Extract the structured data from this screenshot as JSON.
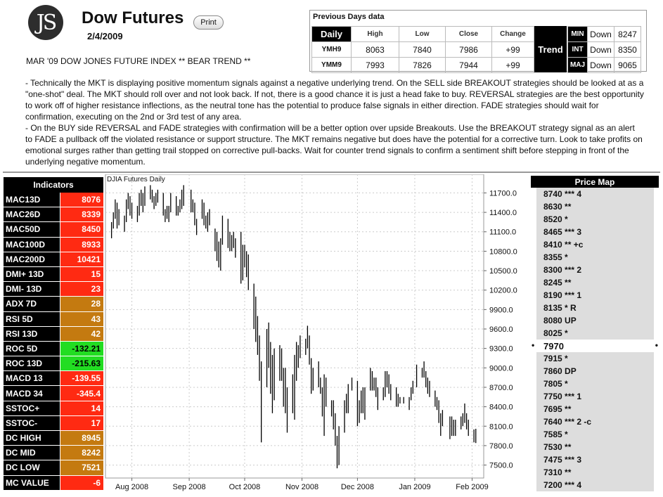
{
  "header": {
    "logo_text": "JS",
    "title": "Dow Futures",
    "print_label": "Print",
    "date": "2/4/2009",
    "subtitle": "MAR '09 DOW JONES FUTURE INDEX ** BEAR TREND **"
  },
  "previous_days": {
    "heading": "Previous Days data",
    "daily_label": "Daily",
    "columns": [
      "High",
      "Low",
      "Close",
      "Change"
    ],
    "rows": [
      {
        "symbol": "YMH9",
        "high": "8063",
        "low": "7840",
        "close": "7986",
        "change": "+99"
      },
      {
        "symbol": "YMM9",
        "high": "7993",
        "low": "7826",
        "close": "7944",
        "change": "+99"
      }
    ],
    "trend_label": "Trend",
    "trend": [
      {
        "key": "MIN",
        "dir": "Down",
        "value": "8247"
      },
      {
        "key": "INT",
        "dir": "Down",
        "value": "8350"
      },
      {
        "key": "MAJ",
        "dir": "Down",
        "value": "9065"
      }
    ]
  },
  "commentary": [
    "- Technically the MKT is displaying positive momentum signals against a negative underlying trend. On the SELL side BREAKOUT strategies should be looked at as a \"one-shot\" deal. The MKT should roll over and not look back. If not, there is a good chance it is just a head fake to buy. REVERSAL strategies are the best opportunity to work off of higher resistance inflections, as the neutral tone has the potential to produce false signals in either direction. FADE strategies should wait for confirmation, executing on the 2nd or 3rd test of any area.",
    "- On the BUY side REVERSAL and FADE strategies with confirmation will be a better option over upside Breakouts. Use the BREAKOUT strategy signal as an alert to FADE a pullback off the violated resistance or support structure. The MKT remains negative but does have the potential for a corrective turn. Look to take profits on emotional surges rather than getting trail stopped on corrective pull-backs. Wait for counter trend signals to confirm a sentiment shift before stepping in front of the underlying negative momentum."
  ],
  "indicators": {
    "heading": "Indicators",
    "colors": {
      "red": "#ff2a12",
      "orange": "#c47a10",
      "green": "#22dd22"
    },
    "items": [
      {
        "name": "MAC13D",
        "value": "8076",
        "color": "red"
      },
      {
        "name": "MAC26D",
        "value": "8339",
        "color": "red"
      },
      {
        "name": "MAC50D",
        "value": "8450",
        "color": "red"
      },
      {
        "name": "MAC100D",
        "value": "8933",
        "color": "red"
      },
      {
        "name": "MAC200D",
        "value": "10421",
        "color": "red"
      },
      {
        "name": "DMI+ 13D",
        "value": "15",
        "color": "red"
      },
      {
        "name": "DMI- 13D",
        "value": "23",
        "color": "red"
      },
      {
        "name": "ADX 7D",
        "value": "28",
        "color": "orange"
      },
      {
        "name": "RSI 5D",
        "value": "43",
        "color": "orange"
      },
      {
        "name": "RSI 13D",
        "value": "42",
        "color": "orange"
      },
      {
        "name": "ROC 5D",
        "value": "-132.21",
        "color": "green"
      },
      {
        "name": "ROC 13D",
        "value": "-215.63",
        "color": "green"
      },
      {
        "name": "MACD 13",
        "value": "-139.55",
        "color": "red"
      },
      {
        "name": "MACD 34",
        "value": "-345.4",
        "color": "red"
      },
      {
        "name": "SSTOC+",
        "value": "14",
        "color": "red"
      },
      {
        "name": "SSTOC-",
        "value": "17",
        "color": "red"
      },
      {
        "name": "DC HIGH",
        "value": "8945",
        "color": "orange"
      },
      {
        "name": "DC MID",
        "value": "8242",
        "color": "orange"
      },
      {
        "name": "DC LOW",
        "value": "7521",
        "color": "orange"
      },
      {
        "name": "MC VALUE",
        "value": "-6",
        "color": "red"
      }
    ]
  },
  "chart_data": {
    "type": "ohlc",
    "title": "DJIA Futures Daily",
    "ylim": [
      7300,
      11900
    ],
    "y_ticks": [
      "11700.0",
      "11400.0",
      "11100.0",
      "10800.0",
      "10500.0",
      "10200.0",
      "9900.0",
      "9600.0",
      "9300.0",
      "9000.0",
      "8700.0",
      "8400.0",
      "8100.0",
      "7800.0",
      "7500.0"
    ],
    "x_labels": [
      "Aug 2008",
      "Sep 2008",
      "Oct 2008",
      "Nov 2008",
      "Dec 2008",
      "Jan 2009",
      "Feb 2009"
    ],
    "grid": true,
    "bars": [
      {
        "date": "2008-07-21",
        "high": 11250,
        "low": 11000
      },
      {
        "date": "2008-07-22",
        "high": 11400,
        "low": 11150
      },
      {
        "date": "2008-07-23",
        "high": 11600,
        "low": 11300
      },
      {
        "date": "2008-07-24",
        "high": 11550,
        "low": 11150
      },
      {
        "date": "2008-07-25",
        "high": 11450,
        "low": 11200
      },
      {
        "date": "2008-07-28",
        "high": 11350,
        "low": 11100
      },
      {
        "date": "2008-07-29",
        "high": 11600,
        "low": 11250
      },
      {
        "date": "2008-07-30",
        "high": 11700,
        "low": 11450
      },
      {
        "date": "2008-07-31",
        "high": 11650,
        "low": 11350
      },
      {
        "date": "2008-08-01",
        "high": 11550,
        "low": 11300
      },
      {
        "date": "2008-08-04",
        "high": 11500,
        "low": 11250
      },
      {
        "date": "2008-08-05",
        "high": 11700,
        "low": 11350
      },
      {
        "date": "2008-08-06",
        "high": 11750,
        "low": 11500
      },
      {
        "date": "2008-08-07",
        "high": 11700,
        "low": 11400
      },
      {
        "date": "2008-08-08",
        "high": 11800,
        "low": 11500
      },
      {
        "date": "2008-08-11",
        "high": 11820,
        "low": 11600
      },
      {
        "date": "2008-08-12",
        "high": 11750,
        "low": 11550
      },
      {
        "date": "2008-08-13",
        "high": 11650,
        "low": 11450
      },
      {
        "date": "2008-08-14",
        "high": 11700,
        "low": 11500
      },
      {
        "date": "2008-08-15",
        "high": 11750,
        "low": 11550
      },
      {
        "date": "2008-08-18",
        "high": 11700,
        "low": 11350
      },
      {
        "date": "2008-08-19",
        "high": 11450,
        "low": 11250
      },
      {
        "date": "2008-08-20",
        "high": 11500,
        "low": 11300
      },
      {
        "date": "2008-08-21",
        "high": 11500,
        "low": 11250
      },
      {
        "date": "2008-08-22",
        "high": 11700,
        "low": 11400
      },
      {
        "date": "2008-08-25",
        "high": 11650,
        "low": 11350
      },
      {
        "date": "2008-08-26",
        "high": 11500,
        "low": 11350
      },
      {
        "date": "2008-08-27",
        "high": 11600,
        "low": 11400
      },
      {
        "date": "2008-08-28",
        "high": 11750,
        "low": 11450
      },
      {
        "date": "2008-08-29",
        "high": 11820,
        "low": 11500
      },
      {
        "date": "2008-09-02",
        "high": 11750,
        "low": 11400
      },
      {
        "date": "2008-09-03",
        "high": 11600,
        "low": 11400
      },
      {
        "date": "2008-09-04",
        "high": 11550,
        "low": 11200
      },
      {
        "date": "2008-09-05",
        "high": 11300,
        "low": 11050
      },
      {
        "date": "2008-09-08",
        "high": 11600,
        "low": 11300
      },
      {
        "date": "2008-09-09",
        "high": 11550,
        "low": 11200
      },
      {
        "date": "2008-09-10",
        "high": 11350,
        "low": 11150
      },
      {
        "date": "2008-09-11",
        "high": 11400,
        "low": 11100
      },
      {
        "date": "2008-09-12",
        "high": 11450,
        "low": 11200
      },
      {
        "date": "2008-09-15",
        "high": 11150,
        "low": 10800
      },
      {
        "date": "2008-09-16",
        "high": 11100,
        "low": 10650
      },
      {
        "date": "2008-09-17",
        "high": 10950,
        "low": 10550
      },
      {
        "date": "2008-09-18",
        "high": 11000,
        "low": 10500
      },
      {
        "date": "2008-09-19",
        "high": 11350,
        "low": 10900
      },
      {
        "date": "2008-09-22",
        "high": 11300,
        "low": 10850
      },
      {
        "date": "2008-09-23",
        "high": 11100,
        "low": 10800
      },
      {
        "date": "2008-09-24",
        "high": 11050,
        "low": 10800
      },
      {
        "date": "2008-09-25",
        "high": 11100,
        "low": 10850
      },
      {
        "date": "2008-09-26",
        "high": 11000,
        "low": 10700
      },
      {
        "date": "2008-09-29",
        "high": 11100,
        "low": 10300
      },
      {
        "date": "2008-09-30",
        "high": 10900,
        "low": 10350
      },
      {
        "date": "2008-10-01",
        "high": 10900,
        "low": 10550
      },
      {
        "date": "2008-10-02",
        "high": 10800,
        "low": 10400
      },
      {
        "date": "2008-10-03",
        "high": 10750,
        "low": 10200
      },
      {
        "date": "2008-10-06",
        "high": 10300,
        "low": 9600
      },
      {
        "date": "2008-10-07",
        "high": 10100,
        "low": 9400
      },
      {
        "date": "2008-10-08",
        "high": 9800,
        "low": 9200
      },
      {
        "date": "2008-10-09",
        "high": 9500,
        "low": 8800
      },
      {
        "date": "2008-10-10",
        "high": 9100,
        "low": 7850
      },
      {
        "date": "2008-10-13",
        "high": 9600,
        "low": 8700
      },
      {
        "date": "2008-10-14",
        "high": 9700,
        "low": 9000
      },
      {
        "date": "2008-10-15",
        "high": 9400,
        "low": 8600
      },
      {
        "date": "2008-10-16",
        "high": 9200,
        "low": 8300
      },
      {
        "date": "2008-10-17",
        "high": 9300,
        "low": 8500
      },
      {
        "date": "2008-10-20",
        "high": 9350,
        "low": 8800
      },
      {
        "date": "2008-10-21",
        "high": 9300,
        "low": 8800
      },
      {
        "date": "2008-10-22",
        "high": 9000,
        "low": 8400
      },
      {
        "date": "2008-10-23",
        "high": 9000,
        "low": 8300
      },
      {
        "date": "2008-10-24",
        "high": 8700,
        "low": 8000
      },
      {
        "date": "2008-10-27",
        "high": 8900,
        "low": 8300
      },
      {
        "date": "2008-10-28",
        "high": 9200,
        "low": 8200
      },
      {
        "date": "2008-10-29",
        "high": 9400,
        "low": 8800
      },
      {
        "date": "2008-10-30",
        "high": 9350,
        "low": 9000
      },
      {
        "date": "2008-10-31",
        "high": 9500,
        "low": 9150
      },
      {
        "date": "2008-11-03",
        "high": 9450,
        "low": 9200
      },
      {
        "date": "2008-11-04",
        "high": 9650,
        "low": 9300
      },
      {
        "date": "2008-11-05",
        "high": 9500,
        "low": 9050
      },
      {
        "date": "2008-11-06",
        "high": 9150,
        "low": 8600
      },
      {
        "date": "2008-11-07",
        "high": 9000,
        "low": 8650
      },
      {
        "date": "2008-11-10",
        "high": 9100,
        "low": 8700
      },
      {
        "date": "2008-11-11",
        "high": 8850,
        "low": 8600
      },
      {
        "date": "2008-11-12",
        "high": 8700,
        "low": 8250
      },
      {
        "date": "2008-11-13",
        "high": 8900,
        "low": 7950
      },
      {
        "date": "2008-11-14",
        "high": 8850,
        "low": 8400
      },
      {
        "date": "2008-11-17",
        "high": 8500,
        "low": 8250
      },
      {
        "date": "2008-11-18",
        "high": 8500,
        "low": 8050
      },
      {
        "date": "2008-11-19",
        "high": 8300,
        "low": 7800
      },
      {
        "date": "2008-11-20",
        "high": 7950,
        "low": 7450
      },
      {
        "date": "2008-11-21",
        "high": 8100,
        "low": 7500
      },
      {
        "date": "2008-11-24",
        "high": 8500,
        "low": 8000
      },
      {
        "date": "2008-11-25",
        "high": 8600,
        "low": 8300
      },
      {
        "date": "2008-11-26",
        "high": 8750,
        "low": 8300
      },
      {
        "date": "2008-11-28",
        "high": 8850,
        "low": 8650
      },
      {
        "date": "2008-12-01",
        "high": 8800,
        "low": 8100
      },
      {
        "date": "2008-12-02",
        "high": 8500,
        "low": 8150
      },
      {
        "date": "2008-12-03",
        "high": 8650,
        "low": 8300
      },
      {
        "date": "2008-12-04",
        "high": 8700,
        "low": 8300
      },
      {
        "date": "2008-12-05",
        "high": 8700,
        "low": 8200
      },
      {
        "date": "2008-12-08",
        "high": 9000,
        "low": 8650
      },
      {
        "date": "2008-12-09",
        "high": 8950,
        "low": 8650
      },
      {
        "date": "2008-12-10",
        "high": 8850,
        "low": 8650
      },
      {
        "date": "2008-12-11",
        "high": 8850,
        "low": 8550
      },
      {
        "date": "2008-12-12",
        "high": 8700,
        "low": 8350
      },
      {
        "date": "2008-12-15",
        "high": 8700,
        "low": 8500
      },
      {
        "date": "2008-12-16",
        "high": 8950,
        "low": 8550
      },
      {
        "date": "2008-12-17",
        "high": 8950,
        "low": 8700
      },
      {
        "date": "2008-12-18",
        "high": 8900,
        "low": 8600
      },
      {
        "date": "2008-12-19",
        "high": 8750,
        "low": 8500
      },
      {
        "date": "2008-12-22",
        "high": 8700,
        "low": 8400
      },
      {
        "date": "2008-12-23",
        "high": 8600,
        "low": 8400
      },
      {
        "date": "2008-12-24",
        "high": 8550,
        "low": 8450
      },
      {
        "date": "2008-12-26",
        "high": 8550,
        "low": 8450
      },
      {
        "date": "2008-12-29",
        "high": 8550,
        "low": 8350
      },
      {
        "date": "2008-12-30",
        "high": 8700,
        "low": 8500
      },
      {
        "date": "2008-12-31",
        "high": 8800,
        "low": 8600
      },
      {
        "date": "2009-01-02",
        "high": 9050,
        "low": 8700
      },
      {
        "date": "2009-01-05",
        "high": 9000,
        "low": 8850
      },
      {
        "date": "2009-01-06",
        "high": 9100,
        "low": 8850
      },
      {
        "date": "2009-01-07",
        "high": 8950,
        "low": 8700
      },
      {
        "date": "2009-01-08",
        "high": 8850,
        "low": 8600
      },
      {
        "date": "2009-01-09",
        "high": 8800,
        "low": 8550
      },
      {
        "date": "2009-01-12",
        "high": 8650,
        "low": 8400
      },
      {
        "date": "2009-01-13",
        "high": 8550,
        "low": 8350
      },
      {
        "date": "2009-01-14",
        "high": 8500,
        "low": 8150
      },
      {
        "date": "2009-01-15",
        "high": 8300,
        "low": 7950
      },
      {
        "date": "2009-01-16",
        "high": 8350,
        "low": 8100
      },
      {
        "date": "2009-01-20",
        "high": 8250,
        "low": 7900
      },
      {
        "date": "2009-01-21",
        "high": 8250,
        "low": 7950
      },
      {
        "date": "2009-01-22",
        "high": 8200,
        "low": 7950
      },
      {
        "date": "2009-01-23",
        "high": 8200,
        "low": 7950
      },
      {
        "date": "2009-01-26",
        "high": 8250,
        "low": 8050
      },
      {
        "date": "2009-01-27",
        "high": 8300,
        "low": 8100
      },
      {
        "date": "2009-01-28",
        "high": 8450,
        "low": 8150
      },
      {
        "date": "2009-01-29",
        "high": 8300,
        "low": 8050
      },
      {
        "date": "2009-01-30",
        "high": 8200,
        "low": 7950
      },
      {
        "date": "2009-02-02",
        "high": 8050,
        "low": 7850
      },
      {
        "date": "2009-02-03",
        "high": 8060,
        "low": 7840
      }
    ]
  },
  "price_map": {
    "heading": "Price Map",
    "items": [
      "8740 *** 4",
      "8630 **",
      "8520 *",
      "8465 *** 3",
      "8410 ** +c",
      "8355 *",
      "8300 *** 2",
      "8245 **",
      "8190 *** 1",
      "8135 * R",
      "8080 UP",
      "8025 *",
      "7970",
      "7915 *",
      "7860 DP",
      "7805 *",
      "7750 *** 1",
      "7695 **",
      "7640 *** 2 -c",
      "7585 *",
      "7530 **",
      "7475 *** 3",
      "7310 **",
      "7200 *** 4"
    ],
    "current_index": 12,
    "current_marker": "•"
  }
}
